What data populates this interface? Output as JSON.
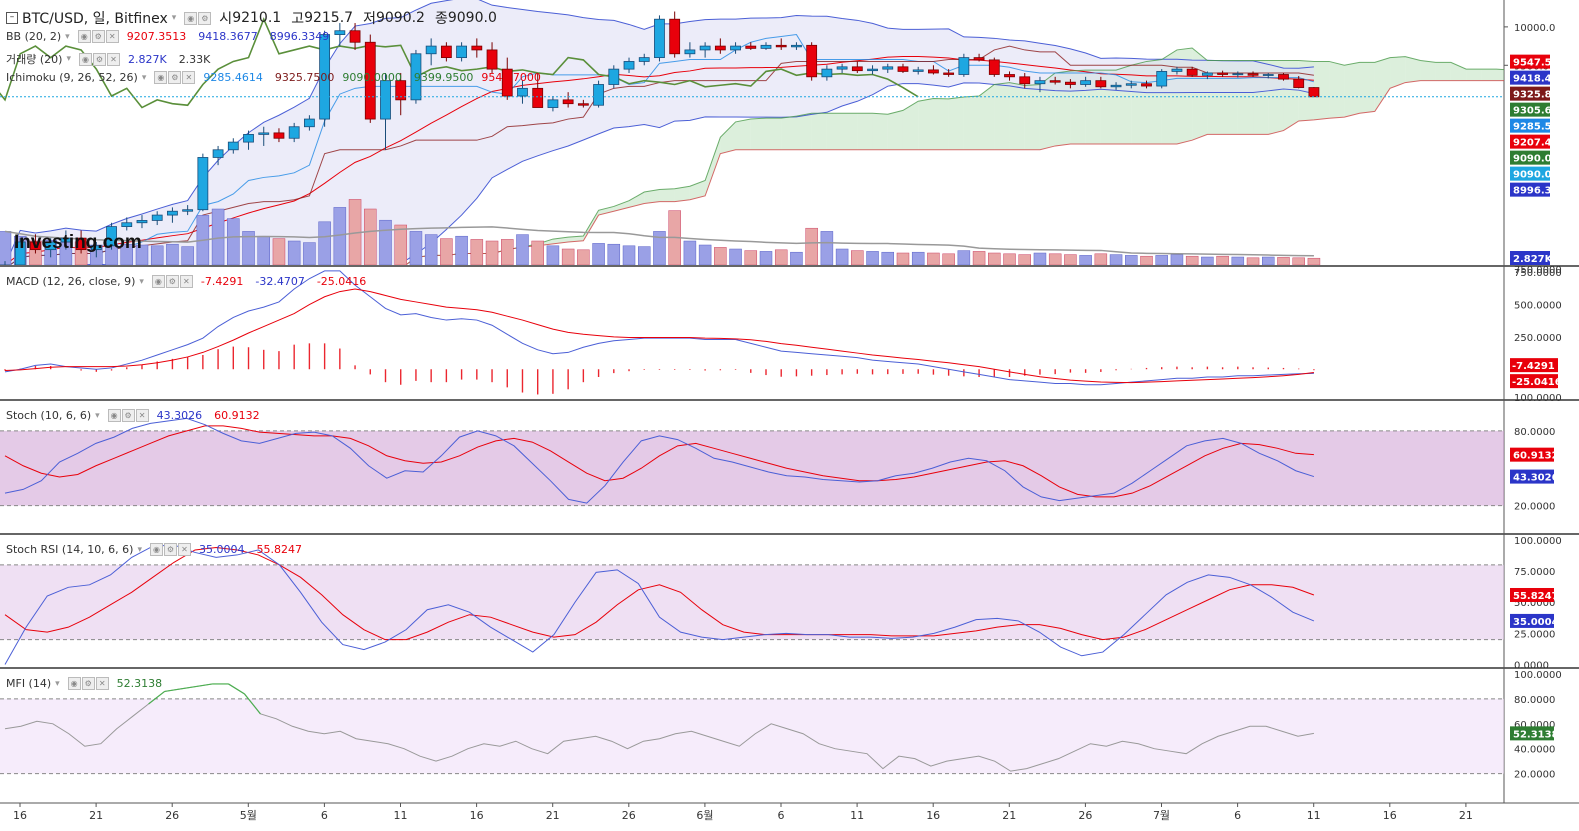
{
  "header": {
    "symbol": "BTC/USD, 일, Bitfinex",
    "open_label": "시",
    "open": "9210.1",
    "high_label": "고",
    "high": "9215.7",
    "low_label": "저",
    "low": "9090.2",
    "close_label": "종",
    "close": "9090.0"
  },
  "legends": {
    "bb": {
      "name": "BB (20, 2)",
      "mid": "9207.3513",
      "upper": "9418.3677",
      "lower": "8996.3349"
    },
    "volume": {
      "name": "거래량 (20)",
      "v1": "2.827K",
      "v2": "2.33K"
    },
    "ichimoku": {
      "name": "Ichimoku (9, 26, 52, 26)",
      "v1": "9285.4614",
      "v2": "9325.7500",
      "v3": "9090.0000",
      "v4": "9399.9500",
      "v5": "9547.7000"
    },
    "macd": {
      "name": "MACD (12, 26, close, 9)",
      "hist": "-7.4291",
      "macd": "-32.4707",
      "signal": "-25.0416"
    },
    "stoch": {
      "name": "Stoch (10, 6, 6)",
      "k": "43.3026",
      "d": "60.9132"
    },
    "stochrsi": {
      "name": "Stoch RSI (14, 10, 6, 6)",
      "k": "35.0004",
      "d": "55.8247"
    },
    "mfi": {
      "name": "MFI (14)",
      "v": "52.3138"
    }
  },
  "watermark": "Investing.com",
  "colors": {
    "up": "#1ea7e1",
    "down": "#e8000b",
    "bb": "#4b5fd6",
    "ichiGreen": "#4a9a4a",
    "cloudGreen": "#9bd19b",
    "cloudRed": "#e3a3a3",
    "bbFill": "#dfe0f5",
    "volUp": "#9aa0e6",
    "volDown": "#e8a6a6",
    "purple": "#ce9ed4",
    "mfiFill": "#efdcf7"
  },
  "chart_data": {
    "type": "candlestick",
    "x_tick_labels": [
      "16",
      "21",
      "26",
      "5월",
      "6",
      "11",
      "16",
      "21",
      "26",
      "6월",
      "6",
      "11",
      "16",
      "21",
      "26",
      "7월",
      "6",
      "11",
      "16",
      "21"
    ],
    "price_axis": {
      "ticks": [
        10000,
        9500
      ],
      "labels": [
        "10000.0",
        "9500.0"
      ],
      "visible_range": [
        6900,
        10350
      ]
    },
    "price_badges": [
      {
        "label": "9547.5",
        "value": 9547.5,
        "color": "#e8000b"
      },
      {
        "label": "9418.4",
        "value": 9418.4,
        "color": "#2b35c8"
      },
      {
        "label": "9325.8",
        "value": 9325.8,
        "color": "#7d1a1a"
      },
      {
        "label": "9305.6",
        "value": 9305.6,
        "color": "#2e7d32"
      },
      {
        "label": "9285.5",
        "value": 9285.5,
        "color": "#1e88e5"
      },
      {
        "label": "9207.4",
        "value": 9207.4,
        "color": "#e8000b"
      },
      {
        "label": "9090.0",
        "value": 9090.0,
        "color": "#2e7d32"
      },
      {
        "label": "9090.0",
        "value": 9090.0,
        "color": "#1ea7e1"
      },
      {
        "label": "8996.3",
        "value": 8996.3,
        "color": "#2b35c8"
      }
    ],
    "volume_badge": "2.827K",
    "volume_axis_label": "750.0000",
    "candles": [
      [
        6800,
        6950,
        6750,
        6900
      ],
      [
        6900,
        7250,
        6850,
        7200
      ],
      [
        7200,
        7300,
        7050,
        7100
      ],
      [
        7100,
        7250,
        7000,
        7200
      ],
      [
        7200,
        7350,
        7100,
        7250
      ],
      [
        7250,
        7350,
        7050,
        7100
      ],
      [
        7100,
        7200,
        7000,
        7150
      ],
      [
        7150,
        7450,
        7100,
        7400
      ],
      [
        7400,
        7520,
        7350,
        7450
      ],
      [
        7450,
        7550,
        7380,
        7480
      ],
      [
        7480,
        7600,
        7420,
        7550
      ],
      [
        7550,
        7650,
        7450,
        7600
      ],
      [
        7600,
        7680,
        7550,
        7620
      ],
      [
        7620,
        8350,
        7600,
        8300
      ],
      [
        8300,
        8450,
        8200,
        8400
      ],
      [
        8400,
        8550,
        8350,
        8500
      ],
      [
        8500,
        8650,
        8400,
        8600
      ],
      [
        8600,
        8700,
        8450,
        8620
      ],
      [
        8620,
        8680,
        8500,
        8550
      ],
      [
        8550,
        8750,
        8500,
        8700
      ],
      [
        8700,
        8850,
        8650,
        8800
      ],
      [
        8800,
        9950,
        8700,
        9900
      ],
      [
        9900,
        10050,
        9750,
        9950
      ],
      [
        9950,
        10050,
        9700,
        9800
      ],
      [
        9800,
        9900,
        8750,
        8800
      ],
      [
        8800,
        9400,
        8400,
        9300
      ],
      [
        9300,
        9400,
        8850,
        9050
      ],
      [
        9050,
        9700,
        9000,
        9650
      ],
      [
        9650,
        9850,
        9500,
        9750
      ],
      [
        9750,
        9800,
        9550,
        9600
      ],
      [
        9600,
        9800,
        9550,
        9750
      ],
      [
        9750,
        9850,
        9600,
        9700
      ],
      [
        9700,
        9800,
        9400,
        9450
      ],
      [
        9450,
        9600,
        9050,
        9100
      ],
      [
        9100,
        9300,
        9000,
        9200
      ],
      [
        9200,
        9400,
        8950,
        8950
      ],
      [
        8950,
        9100,
        8900,
        9050
      ],
      [
        9050,
        9150,
        8950,
        9000
      ],
      [
        9000,
        9050,
        8950,
        8980
      ],
      [
        8980,
        9300,
        8950,
        9250
      ],
      [
        9250,
        9500,
        9200,
        9450
      ],
      [
        9450,
        9600,
        9400,
        9550
      ],
      [
        9550,
        9650,
        9500,
        9600
      ],
      [
        9600,
        10150,
        9550,
        10100
      ],
      [
        10100,
        10200,
        9600,
        9650
      ],
      [
        9650,
        9800,
        9600,
        9700
      ],
      [
        9700,
        9800,
        9600,
        9750
      ],
      [
        9750,
        9850,
        9650,
        9700
      ],
      [
        9700,
        9800,
        9650,
        9750
      ],
      [
        9750,
        9800,
        9700,
        9720
      ],
      [
        9720,
        9800,
        9700,
        9760
      ],
      [
        9760,
        9850,
        9700,
        9740
      ],
      [
        9740,
        9800,
        9700,
        9760
      ],
      [
        9760,
        9800,
        9300,
        9350
      ],
      [
        9350,
        9500,
        9300,
        9450
      ],
      [
        9450,
        9520,
        9400,
        9480
      ],
      [
        9480,
        9550,
        9400,
        9430
      ],
      [
        9430,
        9500,
        9380,
        9450
      ],
      [
        9450,
        9520,
        9400,
        9480
      ],
      [
        9480,
        9520,
        9400,
        9420
      ],
      [
        9420,
        9480,
        9380,
        9440
      ],
      [
        9440,
        9500,
        9380,
        9400
      ],
      [
        9400,
        9450,
        9350,
        9380
      ],
      [
        9380,
        9650,
        9350,
        9600
      ],
      [
        9600,
        9650,
        9550,
        9570
      ],
      [
        9570,
        9600,
        9350,
        9380
      ],
      [
        9380,
        9420,
        9300,
        9350
      ],
      [
        9350,
        9400,
        9200,
        9260
      ],
      [
        9260,
        9350,
        9150,
        9300
      ],
      [
        9300,
        9350,
        9250,
        9280
      ],
      [
        9280,
        9320,
        9200,
        9250
      ],
      [
        9250,
        9350,
        9220,
        9300
      ],
      [
        9300,
        9350,
        9200,
        9220
      ],
      [
        9220,
        9280,
        9180,
        9240
      ],
      [
        9240,
        9300,
        9200,
        9260
      ],
      [
        9260,
        9300,
        9200,
        9230
      ],
      [
        9230,
        9450,
        9200,
        9420
      ],
      [
        9420,
        9480,
        9380,
        9450
      ],
      [
        9450,
        9480,
        9350,
        9370
      ],
      [
        9370,
        9420,
        9320,
        9400
      ],
      [
        9400,
        9430,
        9350,
        9380
      ],
      [
        9380,
        9420,
        9340,
        9390
      ],
      [
        9390,
        9420,
        9350,
        9370
      ],
      [
        9370,
        9400,
        9330,
        9380
      ],
      [
        9380,
        9400,
        9300,
        9320
      ],
      [
        9320,
        9360,
        9200,
        9210
      ],
      [
        9210,
        9216,
        9090,
        9090
      ]
    ],
    "volume": [
      420,
      360,
      300,
      310,
      280,
      290,
      250,
      270,
      260,
      250,
      240,
      260,
      230,
      620,
      700,
      580,
      420,
      360,
      330,
      300,
      280,
      540,
      720,
      820,
      700,
      560,
      500,
      420,
      380,
      330,
      360,
      320,
      300,
      320,
      380,
      300,
      240,
      200,
      190,
      270,
      260,
      240,
      230,
      420,
      680,
      300,
      250,
      220,
      200,
      180,
      170,
      190,
      160,
      460,
      420,
      200,
      180,
      170,
      160,
      150,
      160,
      150,
      140,
      180,
      170,
      150,
      140,
      130,
      150,
      140,
      130,
      120,
      140,
      130,
      120,
      110,
      120,
      130,
      110,
      100,
      110,
      100,
      90,
      100,
      95,
      90,
      85
    ],
    "macd_panel": {
      "axis_ticks": [
        750,
        500,
        250
      ],
      "axis_labels": [
        "750.0000",
        "500.0000",
        "250.0000",
        "100.0000"
      ],
      "macd": [
        -20,
        0,
        30,
        40,
        20,
        10,
        0,
        10,
        40,
        70,
        110,
        150,
        190,
        240,
        330,
        400,
        450,
        480,
        520,
        620,
        700,
        760,
        760,
        650,
        560,
        470,
        420,
        430,
        400,
        380,
        390,
        380,
        340,
        270,
        200,
        150,
        120,
        130,
        170,
        200,
        220,
        230,
        240,
        240,
        240,
        240,
        230,
        230,
        230,
        200,
        170,
        140,
        130,
        120,
        110,
        100,
        90,
        70,
        60,
        50,
        40,
        20,
        0,
        -20,
        -40,
        -60,
        -80,
        -90,
        -100,
        -110,
        -110,
        -120,
        -120,
        -110,
        -100,
        -90,
        -80,
        -70,
        -70,
        -60,
        -60,
        -50,
        -50,
        -45,
        -40,
        -35,
        -32.4707
      ],
      "signal": [
        -10,
        -5,
        5,
        15,
        20,
        20,
        20,
        20,
        25,
        35,
        50,
        70,
        95,
        130,
        175,
        225,
        280,
        330,
        380,
        430,
        500,
        560,
        600,
        620,
        600,
        570,
        540,
        520,
        500,
        480,
        470,
        460,
        440,
        410,
        380,
        345,
        310,
        285,
        270,
        260,
        250,
        245,
        245,
        245,
        245,
        245,
        240,
        238,
        235,
        228,
        215,
        198,
        185,
        170,
        155,
        140,
        125,
        110,
        98,
        86,
        75,
        62,
        50,
        35,
        20,
        0,
        -20,
        -40,
        -58,
        -72,
        -84,
        -92,
        -99,
        -102,
        -103,
        -100,
        -96,
        -90,
        -85,
        -80,
        -75,
        -70,
        -65,
        -58,
        -50,
        -40,
        -25.0416
      ],
      "hist": [
        -10,
        5,
        25,
        25,
        0,
        -10,
        -20,
        -10,
        15,
        35,
        60,
        80,
        95,
        110,
        155,
        175,
        170,
        150,
        140,
        190,
        200,
        200,
        160,
        30,
        -40,
        -100,
        -120,
        -90,
        -100,
        -100,
        -80,
        -80,
        -100,
        -140,
        -180,
        -195,
        -190,
        -155,
        -100,
        -60,
        -30,
        -15,
        -5,
        -5,
        -5,
        -5,
        -10,
        -8,
        -5,
        -28,
        -45,
        -58,
        -55,
        -50,
        -45,
        -40,
        -35,
        -40,
        -38,
        -36,
        -35,
        -42,
        -50,
        -55,
        -60,
        -60,
        -60,
        -50,
        -42,
        -38,
        -26,
        -28,
        -21,
        -8,
        3,
        10,
        16,
        20,
        15,
        20,
        15,
        20,
        15,
        13,
        10,
        5,
        -7.4291
      ],
      "badges": [
        "-7.4291",
        "-25.0416"
      ]
    },
    "stoch_panel": {
      "axis_labels": [
        "80.0000",
        "20.0000"
      ],
      "k": [
        30,
        33,
        40,
        55,
        62,
        70,
        75,
        82,
        86,
        88,
        90,
        85,
        78,
        72,
        70,
        74,
        78,
        79,
        76,
        66,
        52,
        42,
        48,
        47,
        60,
        75,
        80,
        76,
        68,
        54,
        40,
        25,
        22,
        36,
        55,
        72,
        76,
        73,
        66,
        58,
        55,
        51,
        47,
        44,
        43,
        41,
        40,
        39,
        40,
        44,
        46,
        50,
        55,
        58,
        56,
        48,
        35,
        27,
        24,
        26,
        28,
        30,
        38,
        48,
        58,
        68,
        72,
        74,
        70,
        62,
        56,
        48,
        43.3026
      ],
      "d": [
        60,
        52,
        46,
        43,
        45,
        52,
        58,
        64,
        70,
        76,
        80,
        84,
        84,
        82,
        79,
        78,
        77,
        76,
        76,
        74,
        68,
        60,
        56,
        54,
        55,
        60,
        67,
        72,
        74,
        71,
        64,
        55,
        46,
        40,
        42,
        50,
        60,
        68,
        70,
        66,
        62,
        58,
        54,
        50,
        47,
        44,
        42,
        40,
        40,
        41,
        43,
        46,
        49,
        52,
        55,
        56,
        52,
        44,
        35,
        29,
        27,
        27,
        30,
        36,
        44,
        52,
        60,
        66,
        70,
        69,
        66,
        62,
        60.9132
      ],
      "badges": [
        "60.9132",
        "43.3026"
      ]
    },
    "stochrsi_panel": {
      "axis_labels": [
        "100.0000",
        "75.0000",
        "50.0000",
        "25.0000",
        "0.0000"
      ],
      "k": [
        0,
        30,
        55,
        62,
        64,
        72,
        86,
        95,
        96,
        90,
        86,
        88,
        92,
        80,
        58,
        34,
        16,
        12,
        18,
        28,
        44,
        48,
        42,
        30,
        20,
        10,
        24,
        50,
        74,
        76,
        65,
        38,
        26,
        22,
        20,
        22,
        24,
        25,
        24,
        24,
        22,
        22,
        21,
        22,
        25,
        30,
        36,
        37,
        35,
        26,
        14,
        7,
        10,
        24,
        40,
        56,
        66,
        72,
        70,
        64,
        54,
        42,
        35.0004
      ],
      "d": [
        40,
        28,
        26,
        30,
        38,
        48,
        58,
        70,
        82,
        92,
        94,
        92,
        88,
        80,
        70,
        56,
        40,
        28,
        20,
        20,
        26,
        34,
        40,
        38,
        32,
        26,
        22,
        24,
        34,
        48,
        60,
        64,
        58,
        44,
        32,
        26,
        24,
        24,
        24,
        24,
        24,
        24,
        23,
        23,
        23,
        25,
        27,
        30,
        32,
        32,
        29,
        24,
        20,
        22,
        28,
        36,
        44,
        52,
        60,
        64,
        64,
        62,
        55.8247
      ],
      "badges": [
        "55.8247",
        "35.0004"
      ]
    },
    "mfi_panel": {
      "axis_labels": [
        "100.0000",
        "80.0000",
        "60.0000",
        "40.0000",
        "20.0000"
      ],
      "values": [
        56,
        58,
        62,
        60,
        52,
        42,
        44,
        56,
        66,
        76,
        86,
        88,
        90,
        92,
        92,
        84,
        68,
        64,
        58,
        54,
        52,
        54,
        48,
        46,
        44,
        40,
        34,
        30,
        34,
        40,
        44,
        42,
        46,
        40,
        36,
        46,
        48,
        50,
        46,
        40,
        46,
        48,
        52,
        54,
        50,
        46,
        42,
        52,
        60,
        56,
        52,
        44,
        40,
        38,
        36,
        24,
        34,
        32,
        26,
        30,
        32,
        34,
        30,
        22,
        24,
        28,
        32,
        38,
        44,
        42,
        46,
        44,
        40,
        38,
        36,
        44,
        50,
        54,
        58,
        58,
        54,
        50,
        52.3138
      ],
      "badge": "52.3138"
    }
  }
}
